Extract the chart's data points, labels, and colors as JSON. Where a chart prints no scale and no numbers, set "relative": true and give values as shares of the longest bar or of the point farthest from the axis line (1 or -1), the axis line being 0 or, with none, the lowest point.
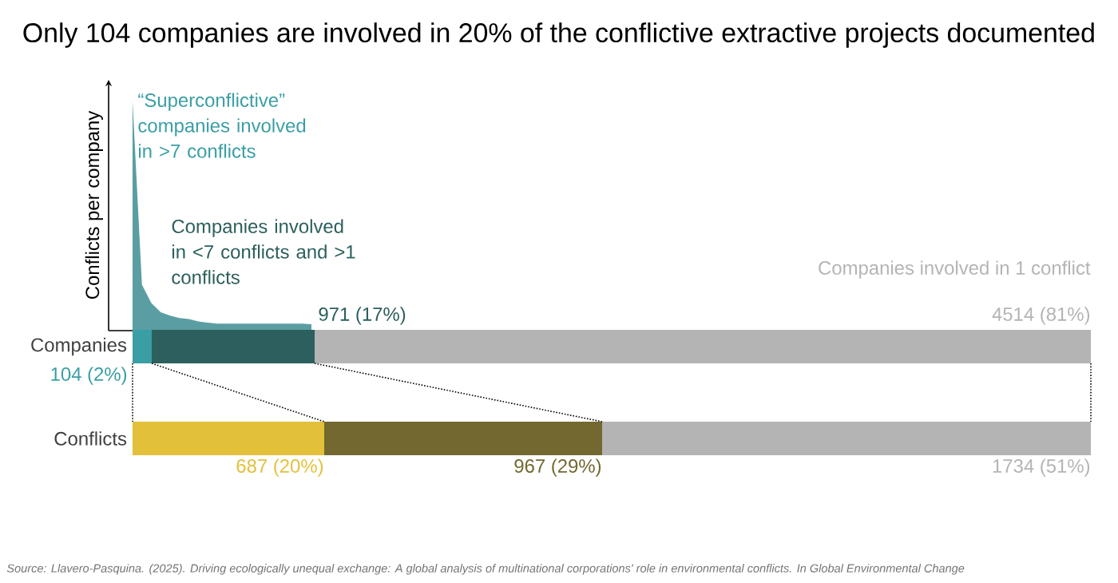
{
  "chart_data": [
    {
      "type": "area",
      "relative": true,
      "ylabel": "Conflicts per company",
      "color": "#5a9ea3",
      "categories": [
        null,
        null,
        null,
        null,
        null,
        null,
        null,
        null,
        null,
        null,
        null,
        null,
        null,
        null,
        null,
        null,
        null,
        null,
        null,
        null
      ],
      "values": [
        1.0,
        0.2,
        0.12,
        0.08,
        0.065,
        0.055,
        0.05,
        0.04,
        0.035,
        0.03,
        0.03,
        0.03,
        0.03,
        0.03,
        0.03,
        0.03,
        0.03,
        0.03,
        0.03,
        0.028
      ]
    },
    {
      "type": "bar",
      "orientation": "horizontal",
      "stacked": true,
      "tick_labels": "y",
      "title": "Only 104 companies are involved in 20% of the conflictive extractive projects documented",
      "categories": [
        "Companies",
        "Conflicts"
      ],
      "series": [
        {
          "name": "“Superconflictive” companies involved in >7 conflicts",
          "colors": [
            "#3a9ea5",
            "#e3c03a"
          ],
          "values": [
            2,
            20
          ],
          "value_labels": [
            "104 (2%)",
            "687 (20%)"
          ]
        },
        {
          "name": "Companies involved in <7 conflicts and >1 conflicts",
          "colors": [
            "#2c5f5d",
            "#736830"
          ],
          "values": [
            17,
            29
          ],
          "value_labels": [
            "971 (17%)",
            "967 (29%)"
          ]
        },
        {
          "name": "Companies involved in 1 conflict",
          "colors": [
            "#b4b4b4",
            "#b4b4b4"
          ],
          "values": [
            81,
            51
          ],
          "value_labels": [
            "4514 (81%)",
            "1734 (51%)"
          ]
        }
      ],
      "annotations": [
        "Source: Llavero-Pasquina. (2025). Driving ecologically unequal exchange: A global analysis of multinational corporations' role in environmental conflicts. In Global Environmental Change"
      ]
    }
  ]
}
